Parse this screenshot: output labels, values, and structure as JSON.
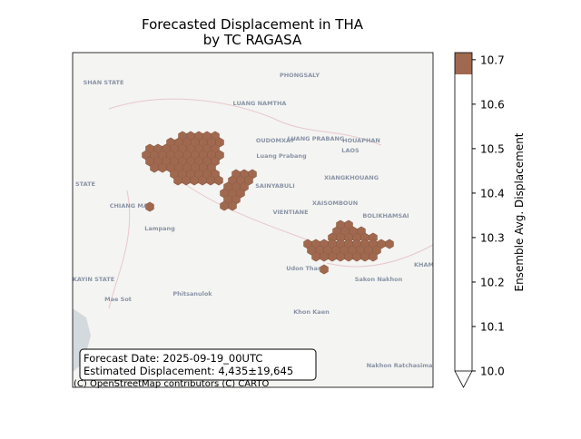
{
  "title": "Forecasted Displacement in THA\nby TC RAGASA",
  "info_box": [
    "Forecast Date: 2025-09-19_00UTC",
    "Estimated Displacement: 4,435±19,645"
  ],
  "attribution": "(C) OpenStreetMap contributors (C) CARTO",
  "hex_color": "#a0694f",
  "colorbar": {
    "label": "Ensemble Avg. Displacement",
    "lim": [
      10.0,
      10.716
    ],
    "ticks": [
      {
        "value": 10.0,
        "label": "10.0"
      },
      10.1,
      10.2,
      10.3,
      10.4,
      10.5,
      10.6,
      10.7
    ]
  },
  "map_labels": [
    "SHAN STATE",
    "PHONGSALY",
    "LUANG NAMTHA",
    "OUDOMXAY",
    "LUANG PRABANG",
    "HOUAPHAN",
    "LAOS",
    "XIANGKHOUANG",
    "SAINYABULI",
    "XAISOMBOUN",
    "VIENTIANE",
    "BOLIKHAMSAI",
    "CHIANG MAI",
    "Lampang",
    "STATE",
    "Udon Thani",
    "Sakon Nakhon",
    "Phitsanulok",
    "Khon Kaen",
    "Mae Sot",
    "Nakhon Ratchasima",
    "KAYIN STATE",
    "Luang Prabang",
    "KHAM"
  ]
}
